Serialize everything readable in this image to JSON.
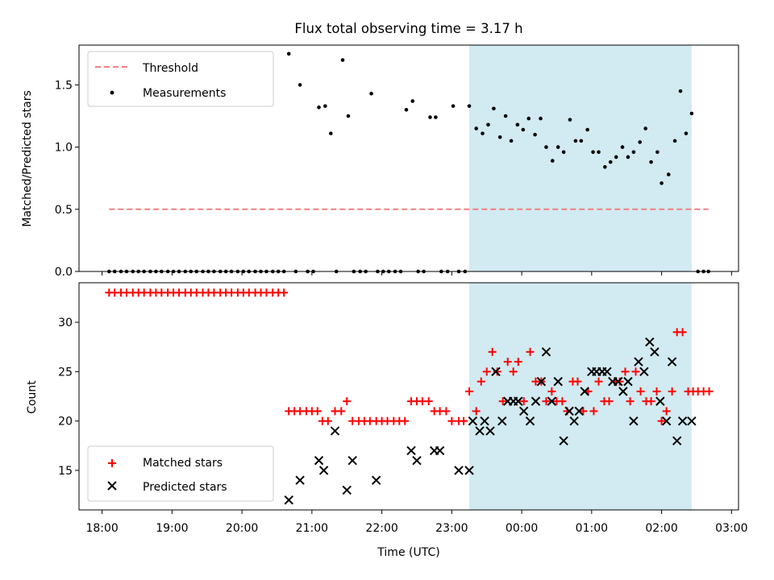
{
  "title": "Flux total observing time = 3.17 h",
  "colors": {
    "threshold": "#f08080",
    "measurement": "#000000",
    "matched": "#ff0000",
    "predicted": "#000000",
    "shade": "#add8e6"
  },
  "chart_data": [
    {
      "type": "scatter",
      "ylabel": "Matched/Predicted stars",
      "ylim": [
        0,
        1.82
      ],
      "yticks": [
        "0.0",
        "0.5",
        "1.0",
        "1.5"
      ],
      "xlim_hours": [
        17.67,
        27.1
      ],
      "legend": {
        "placement": "top-left",
        "entries": [
          "Threshold",
          "Measurements"
        ]
      },
      "shaded_interval_hours": [
        23.25,
        26.43
      ],
      "threshold": {
        "name": "Threshold",
        "y": 0.5,
        "x_range_hours": [
          18.1,
          26.67
        ]
      },
      "measurements": {
        "name": "Measurements",
        "x_hours": [
          18.1,
          18.18,
          18.27,
          18.35,
          18.44,
          18.52,
          18.6,
          18.69,
          18.77,
          18.85,
          18.94,
          19.02,
          19.1,
          19.19,
          19.27,
          19.35,
          19.44,
          19.52,
          19.6,
          19.69,
          19.77,
          19.85,
          19.94,
          20.02,
          20.1,
          20.19,
          20.27,
          20.35,
          20.44,
          20.52,
          20.6,
          20.67,
          20.77,
          20.83,
          20.94,
          21.02,
          21.1,
          21.19,
          21.27,
          21.35,
          21.44,
          21.52,
          21.6,
          21.69,
          21.77,
          21.85,
          21.94,
          22.02,
          22.1,
          22.19,
          22.27,
          22.35,
          22.44,
          22.52,
          22.6,
          22.69,
          22.77,
          22.85,
          22.94,
          23.02,
          23.1,
          23.19,
          23.25,
          23.35,
          23.44,
          23.52,
          23.6,
          23.69,
          23.77,
          23.85,
          23.94,
          24.02,
          24.1,
          24.19,
          24.27,
          24.35,
          24.44,
          24.52,
          24.6,
          24.69,
          24.77,
          24.85,
          24.94,
          25.02,
          25.1,
          25.19,
          25.27,
          25.35,
          25.44,
          25.52,
          25.6,
          25.69,
          25.77,
          25.85,
          25.94,
          26.0,
          26.1,
          26.19,
          26.27,
          26.35,
          26.43,
          26.52,
          26.6,
          26.67
        ],
        "y": [
          0,
          0,
          0,
          0,
          0,
          0,
          0,
          0,
          0,
          0,
          0,
          0,
          0,
          0,
          0,
          0,
          0,
          0,
          0,
          0,
          0,
          0,
          0,
          0,
          0,
          0,
          0,
          0,
          0,
          0,
          0,
          1.75,
          0,
          1.5,
          0,
          0,
          1.32,
          1.33,
          1.11,
          0,
          1.7,
          1.25,
          0,
          0,
          0,
          1.43,
          0,
          0,
          0,
          0,
          0,
          1.3,
          1.37,
          0,
          0,
          1.24,
          1.24,
          0,
          0,
          1.33,
          0,
          0,
          1.33,
          1.15,
          1.11,
          1.18,
          1.31,
          1.08,
          1.25,
          1.05,
          1.18,
          1.14,
          1.23,
          1.1,
          1.23,
          1.0,
          0.89,
          1.0,
          0.96,
          1.22,
          1.05,
          1.05,
          1.14,
          0.96,
          0.96,
          0.84,
          0.88,
          0.92,
          1.0,
          0.92,
          0.96,
          1.04,
          1.15,
          0.88,
          0.96,
          0.71,
          0.78,
          1.05,
          1.45,
          1.11,
          1.27,
          0,
          0,
          0
        ]
      }
    },
    {
      "type": "scatter",
      "xlabel": "Time (UTC)",
      "ylabel": "Count",
      "ylim": [
        11,
        34
      ],
      "yticks": [
        "15",
        "20",
        "25",
        "30"
      ],
      "xlim_hours": [
        17.67,
        27.1
      ],
      "xticks": [
        "18:00",
        "19:00",
        "20:00",
        "21:00",
        "22:00",
        "23:00",
        "00:00",
        "01:00",
        "02:00",
        "03:00"
      ],
      "xtick_hours": [
        18,
        19,
        20,
        21,
        22,
        23,
        24,
        25,
        26,
        27
      ],
      "legend": {
        "placement": "bottom-left",
        "entries": [
          "Matched stars",
          "Predicted stars"
        ]
      },
      "shaded_interval_hours": [
        23.25,
        26.43
      ],
      "matched": {
        "name": "Matched stars",
        "x_hours": [
          18.1,
          18.18,
          18.27,
          18.35,
          18.44,
          18.52,
          18.6,
          18.69,
          18.77,
          18.85,
          18.94,
          19.02,
          19.1,
          19.19,
          19.27,
          19.35,
          19.44,
          19.52,
          19.6,
          19.69,
          19.77,
          19.85,
          19.94,
          20.02,
          20.1,
          20.19,
          20.27,
          20.35,
          20.44,
          20.52,
          20.6,
          20.67,
          20.75,
          20.83,
          20.92,
          21.0,
          21.08,
          21.15,
          21.23,
          21.33,
          21.42,
          21.5,
          21.58,
          21.67,
          21.75,
          21.83,
          21.92,
          22.0,
          22.08,
          22.17,
          22.25,
          22.33,
          22.42,
          22.5,
          22.58,
          22.67,
          22.75,
          22.83,
          22.92,
          23.0,
          23.1,
          23.17,
          23.25,
          23.35,
          23.42,
          23.5,
          23.58,
          23.65,
          23.73,
          23.8,
          23.88,
          23.95,
          24.03,
          24.12,
          24.2,
          24.28,
          24.35,
          24.43,
          24.5,
          24.58,
          24.65,
          24.73,
          24.8,
          24.88,
          24.95,
          25.03,
          25.1,
          25.18,
          25.25,
          25.33,
          25.4,
          25.48,
          25.55,
          25.63,
          25.7,
          25.78,
          25.85,
          25.93,
          26.0,
          26.07,
          26.15,
          26.22,
          26.3,
          26.38,
          26.45,
          26.52,
          26.6,
          26.68
        ],
        "y": [
          33,
          33,
          33,
          33,
          33,
          33,
          33,
          33,
          33,
          33,
          33,
          33,
          33,
          33,
          33,
          33,
          33,
          33,
          33,
          33,
          33,
          33,
          33,
          33,
          33,
          33,
          33,
          33,
          33,
          33,
          33,
          21,
          21,
          21,
          21,
          21,
          21,
          20,
          20,
          21,
          21,
          22,
          20,
          20,
          20,
          20,
          20,
          20,
          20,
          20,
          20,
          20,
          22,
          22,
          22,
          22,
          21,
          21,
          21,
          20,
          20,
          20,
          23,
          21,
          24,
          25,
          27,
          25,
          22,
          26,
          25,
          26,
          22,
          27,
          24,
          24,
          22,
          23,
          22,
          22,
          21,
          24,
          24,
          21,
          23,
          21,
          24,
          22,
          22,
          24,
          24,
          25,
          22,
          25,
          23,
          22,
          22,
          23,
          20,
          21,
          23,
          29,
          29,
          23,
          23,
          23,
          23,
          23
        ]
      },
      "predicted": {
        "name": "Predicted stars",
        "x_hours": [
          20.67,
          20.83,
          21.1,
          21.17,
          21.33,
          21.5,
          21.58,
          21.92,
          22.42,
          22.5,
          22.75,
          22.83,
          23.1,
          23.25,
          23.3,
          23.4,
          23.47,
          23.55,
          23.63,
          23.72,
          23.8,
          23.88,
          23.95,
          24.03,
          24.12,
          24.2,
          24.28,
          24.35,
          24.43,
          24.52,
          24.6,
          24.68,
          24.75,
          24.82,
          24.9,
          25.0,
          25.07,
          25.15,
          25.22,
          25.3,
          25.38,
          25.45,
          25.52,
          25.6,
          25.67,
          25.75,
          25.83,
          25.9,
          25.98,
          26.07,
          26.15,
          26.22,
          26.3,
          26.43
        ],
        "y": [
          12,
          14,
          16,
          15,
          19,
          13,
          16,
          14,
          17,
          16,
          17,
          17,
          15,
          15,
          20,
          19,
          20,
          19,
          25,
          20,
          22,
          22,
          22,
          21,
          20,
          22,
          24,
          27,
          22,
          24,
          18,
          21,
          20,
          21,
          23,
          25,
          25,
          25,
          25,
          24,
          24,
          23,
          24,
          20,
          26,
          25,
          28,
          27,
          22,
          20,
          26,
          18,
          20,
          20
        ]
      }
    }
  ]
}
